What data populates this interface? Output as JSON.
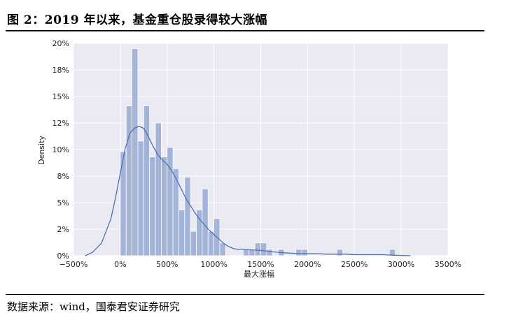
{
  "title": "图 2：2019 年以来，基金重仓股录得较大涨幅",
  "source": "数据来源：wind，国泰君安证券研究",
  "colors": {
    "plot_bg": "#eaeaf2",
    "bar": "#a3b4d8",
    "line": "#4c72b0",
    "grid": "#ffffff"
  },
  "chart_data": {
    "type": "bar",
    "subtype": "histogram-with-kde",
    "xlabel": "最大涨幅",
    "ylabel": "Density",
    "xlim": [
      -500,
      3500
    ],
    "ylim": [
      0,
      20
    ],
    "x_ticks": [
      -500,
      0,
      500,
      1000,
      1500,
      2000,
      2500,
      3000,
      3500
    ],
    "x_tick_labels": [
      "−500%",
      "0%",
      "500%",
      "1000%",
      "1500%",
      "2000%",
      "2500%",
      "3000%",
      "3500%"
    ],
    "y_ticks": [
      0,
      2.5,
      5,
      7.5,
      10,
      12.5,
      15,
      17.5,
      20
    ],
    "y_tick_labels": [
      "0%",
      "2%",
      "5%",
      "8%",
      "10%",
      "12%",
      "15%",
      "18%",
      "20%"
    ],
    "grid": true,
    "bin_width": 62.5,
    "bins_start": [
      0,
      62.5,
      125,
      187.5,
      250,
      312.5,
      375,
      437.5,
      500,
      562.5,
      625,
      687.5,
      750,
      812.5,
      875,
      937.5,
      1000,
      1062.5,
      1125,
      1187.5,
      1250,
      1312.5,
      1375,
      1437.5,
      1500,
      1562.5,
      1625,
      1687.5,
      1750,
      1812.5,
      1875,
      1937.5,
      2000,
      2062.5,
      2125,
      2187.5,
      2250,
      2312.5,
      2375,
      2437.5,
      2500,
      2562.5,
      2625,
      2687.5,
      2750,
      2812.5,
      2875
    ],
    "densities": [
      9.8,
      14.1,
      19.5,
      10.8,
      14.1,
      9.3,
      12.5,
      9.3,
      10.2,
      8.2,
      4.3,
      7.4,
      2.3,
      4.3,
      6.3,
      2.3,
      3.5,
      1.2,
      0,
      0,
      0,
      0.6,
      0.6,
      1.2,
      1.2,
      0.6,
      0,
      0.6,
      0,
      0,
      0.6,
      0.6,
      0,
      0,
      0,
      0,
      0,
      0.6,
      0,
      0,
      0,
      0,
      0,
      0,
      0,
      0,
      0.6
    ],
    "kde": {
      "x": [
        -375,
        -300,
        -200,
        -100,
        -50,
        0,
        50,
        100,
        150,
        200,
        250,
        300,
        350,
        400,
        450,
        500,
        550,
        600,
        650,
        700,
        750,
        800,
        850,
        900,
        950,
        1000,
        1050,
        1100,
        1150,
        1200,
        1250,
        1300,
        1400,
        1500,
        1600,
        1700,
        1800,
        1900,
        2000,
        2100,
        2200,
        2300,
        2400,
        2500,
        2600,
        2700,
        2800,
        2900,
        3000,
        3100
      ],
      "y": [
        0,
        0.3,
        1.2,
        3.5,
        5.5,
        7.8,
        10.0,
        11.5,
        12.0,
        12.2,
        12.0,
        11.2,
        10.3,
        9.5,
        9.0,
        8.6,
        8.0,
        7.2,
        6.3,
        5.4,
        4.7,
        4.0,
        3.4,
        2.9,
        2.4,
        2.0,
        1.6,
        1.2,
        0.9,
        0.7,
        0.6,
        0.6,
        0.55,
        0.5,
        0.4,
        0.3,
        0.25,
        0.2,
        0.2,
        0.2,
        0.15,
        0.15,
        0.15,
        0.1,
        0.1,
        0.1,
        0.1,
        0.05,
        0.02,
        0
      ]
    }
  }
}
